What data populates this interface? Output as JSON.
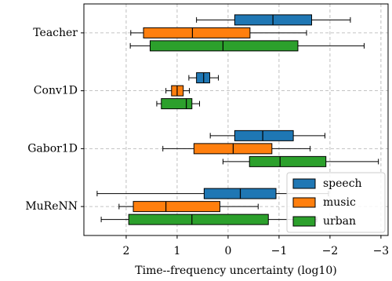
{
  "chart_data": {
    "type": "boxplot",
    "orientation": "horizontal",
    "xlabel": "Time--frequency uncertainty (log10)",
    "categories": [
      "Teacher",
      "Conv1D",
      "Gabor1D",
      "MuReNN"
    ],
    "xlim": [
      2.83,
      -3.14
    ],
    "xticks": [
      2,
      1,
      0,
      {
        "value": -1,
        "label": "−1"
      },
      {
        "value": -2,
        "label": "−2"
      },
      {
        "value": -3,
        "label": "−3"
      }
    ],
    "grid": true,
    "legend": "lower right",
    "series": [
      {
        "name": "speech",
        "color": "#1f77b4",
        "whislo": [
          0.62,
          0.77,
          0.35,
          2.57
        ],
        "q1": [
          -0.13,
          0.62,
          -0.13,
          0.47
        ],
        "median": [
          -0.88,
          0.48,
          -0.68,
          -0.24
        ],
        "q3": [
          -1.64,
          0.36,
          -1.28,
          -0.94
        ],
        "whishi": [
          -2.4,
          0.19,
          -1.9,
          -1.97
        ]
      },
      {
        "name": "music",
        "color": "#ff7f0e",
        "whislo": [
          1.91,
          1.22,
          1.28,
          2.14
        ],
        "q1": [
          1.66,
          1.11,
          0.67,
          1.86
        ],
        "median": [
          0.7,
          1.0,
          -0.1,
          1.22
        ],
        "q3": [
          -0.43,
          0.88,
          -0.86,
          0.16
        ],
        "whishi": [
          -1.54,
          0.76,
          -1.61,
          -0.59
        ]
      },
      {
        "name": "urban",
        "color": "#2ca02c",
        "whislo": [
          1.92,
          1.4,
          0.1,
          2.49
        ],
        "q1": [
          1.53,
          1.31,
          -0.42,
          1.95
        ],
        "median": [
          0.1,
          0.82,
          -1.02,
          0.71
        ],
        "q3": [
          -1.37,
          0.71,
          -1.92,
          -0.79
        ],
        "whishi": [
          -2.67,
          0.56,
          -2.95,
          -1.74
        ]
      }
    ]
  }
}
